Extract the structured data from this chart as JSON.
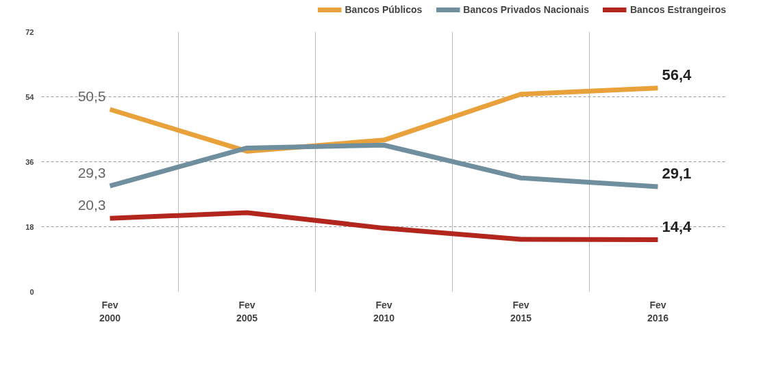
{
  "chart_data": {
    "type": "line",
    "categories": [
      "Fev\n2000",
      "Fev\n2005",
      "Fev\n2010",
      "Fev\n2015",
      "Fev\n2016"
    ],
    "series": [
      {
        "name": "Bancos Públicos",
        "color": "#e9a23b",
        "values": [
          50.5,
          38.9,
          42.0,
          54.7,
          56.4
        ],
        "value_labels": [
          "50,5",
          null,
          null,
          null,
          "56,4"
        ]
      },
      {
        "name": "Bancos Privados Nacionais",
        "color": "#6f8e9e",
        "values": [
          29.3,
          39.8,
          40.6,
          31.5,
          29.1
        ],
        "value_labels": [
          "29,3",
          null,
          null,
          null,
          "29,1"
        ]
      },
      {
        "name": "Bancos Estrangeiros",
        "color": "#b3261e",
        "values": [
          20.3,
          21.9,
          17.6,
          14.5,
          14.4
        ],
        "value_labels": [
          "20,3",
          null,
          null,
          null,
          "14,4"
        ]
      }
    ],
    "ylim": [
      0,
      72
    ],
    "yticks": [
      0,
      18,
      36,
      54,
      72
    ],
    "grid": true,
    "legend": "top right",
    "marker": "none",
    "line_style": "solid"
  }
}
